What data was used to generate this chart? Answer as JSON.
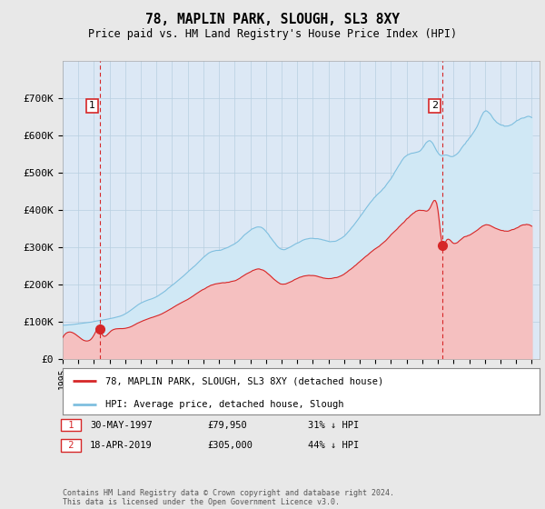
{
  "title": "78, MAPLIN PARK, SLOUGH, SL3 8XY",
  "subtitle": "Price paid vs. HM Land Registry's House Price Index (HPI)",
  "ylim": [
    0,
    800000
  ],
  "yticks": [
    0,
    100000,
    200000,
    300000,
    400000,
    500000,
    600000,
    700000
  ],
  "ytick_labels": [
    "£0",
    "£100K",
    "£200K",
    "£300K",
    "£400K",
    "£500K",
    "£600K",
    "£700K"
  ],
  "sale1_date": 1997.38,
  "sale1_price": 79950,
  "sale1_label": "1",
  "sale2_date": 2019.29,
  "sale2_price": 305000,
  "sale2_label": "2",
  "hpi_color": "#7fbfdf",
  "hpi_fill_color": "#d0e8f5",
  "price_color": "#d62728",
  "price_fill_color": "#f5c0c0",
  "vline_color": "#d62728",
  "background_color": "#e8e8e8",
  "plot_bg_color": "#dce8f5",
  "grid_color": "#b0c8e0",
  "legend_label1": "78, MAPLIN PARK, SLOUGH, SL3 8XY (detached house)",
  "legend_label2": "HPI: Average price, detached house, Slough",
  "footnote": "Contains HM Land Registry data © Crown copyright and database right 2024.\nThis data is licensed under the Open Government Licence v3.0.",
  "xlim_left": 1995.0,
  "xlim_right": 2025.5,
  "sale1_date_str": "30-MAY-1997",
  "sale1_price_str": "£79,950",
  "sale1_hpi_str": "31% ↓ HPI",
  "sale2_date_str": "18-APR-2019",
  "sale2_price_str": "£305,000",
  "sale2_hpi_str": "44% ↓ HPI"
}
